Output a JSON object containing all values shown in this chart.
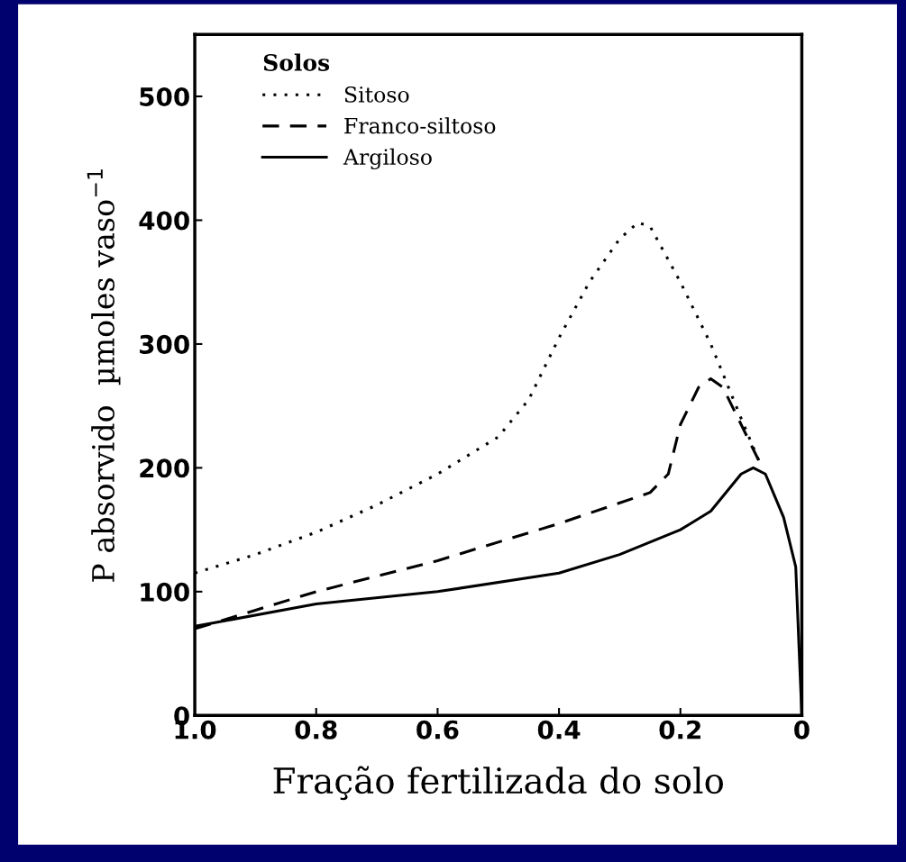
{
  "chart_data": {
    "type": "line",
    "xlabel": "Fração fertilizada do solo",
    "ylabel": "P absorvido  µmoles vaso$^{−1}$",
    "legend_title": "Solos",
    "legend": "top left",
    "grid": false,
    "xlim": [
      1.0,
      0
    ],
    "xticks": [
      {
        "value": 1.0,
        "label": "1.0"
      },
      {
        "value": 0.8,
        "label": "0.8"
      },
      {
        "value": 0.6,
        "label": "0.6"
      },
      {
        "value": 0.4,
        "label": "0.4"
      },
      {
        "value": 0.2,
        "label": "0.2"
      },
      0
    ],
    "ylim": [
      0,
      550
    ],
    "yticks": [
      0,
      100,
      200,
      300,
      400,
      500
    ],
    "series": [
      {
        "name": "Sitoso",
        "color": "#000000",
        "line_style": "dotted",
        "x": [
          1.0,
          0.9,
          0.8,
          0.7,
          0.6,
          0.5,
          0.45,
          0.4,
          0.35,
          0.3,
          0.27,
          0.25,
          0.2,
          0.15,
          0.1,
          0.07
        ],
        "values": [
          115,
          130,
          148,
          170,
          195,
          225,
          255,
          305,
          350,
          385,
          398,
          395,
          350,
          300,
          240,
          205
        ]
      },
      {
        "name": "Franco-siltoso",
        "color": "#000000",
        "line_style": "dashed",
        "x": [
          1.0,
          0.9,
          0.8,
          0.6,
          0.4,
          0.25,
          0.22,
          0.2,
          0.17,
          0.15,
          0.13,
          0.1,
          0.07
        ],
        "values": [
          70,
          85,
          100,
          125,
          155,
          180,
          195,
          235,
          265,
          272,
          265,
          235,
          205
        ]
      },
      {
        "name": "Argiloso",
        "color": "#000000",
        "line_style": "solid",
        "x": [
          1.0,
          0.8,
          0.6,
          0.4,
          0.3,
          0.2,
          0.15,
          0.1,
          0.08,
          0.06,
          0.03,
          0.01,
          0.0
        ],
        "values": [
          72,
          90,
          100,
          115,
          130,
          150,
          165,
          195,
          200,
          195,
          160,
          120,
          0
        ]
      }
    ]
  }
}
